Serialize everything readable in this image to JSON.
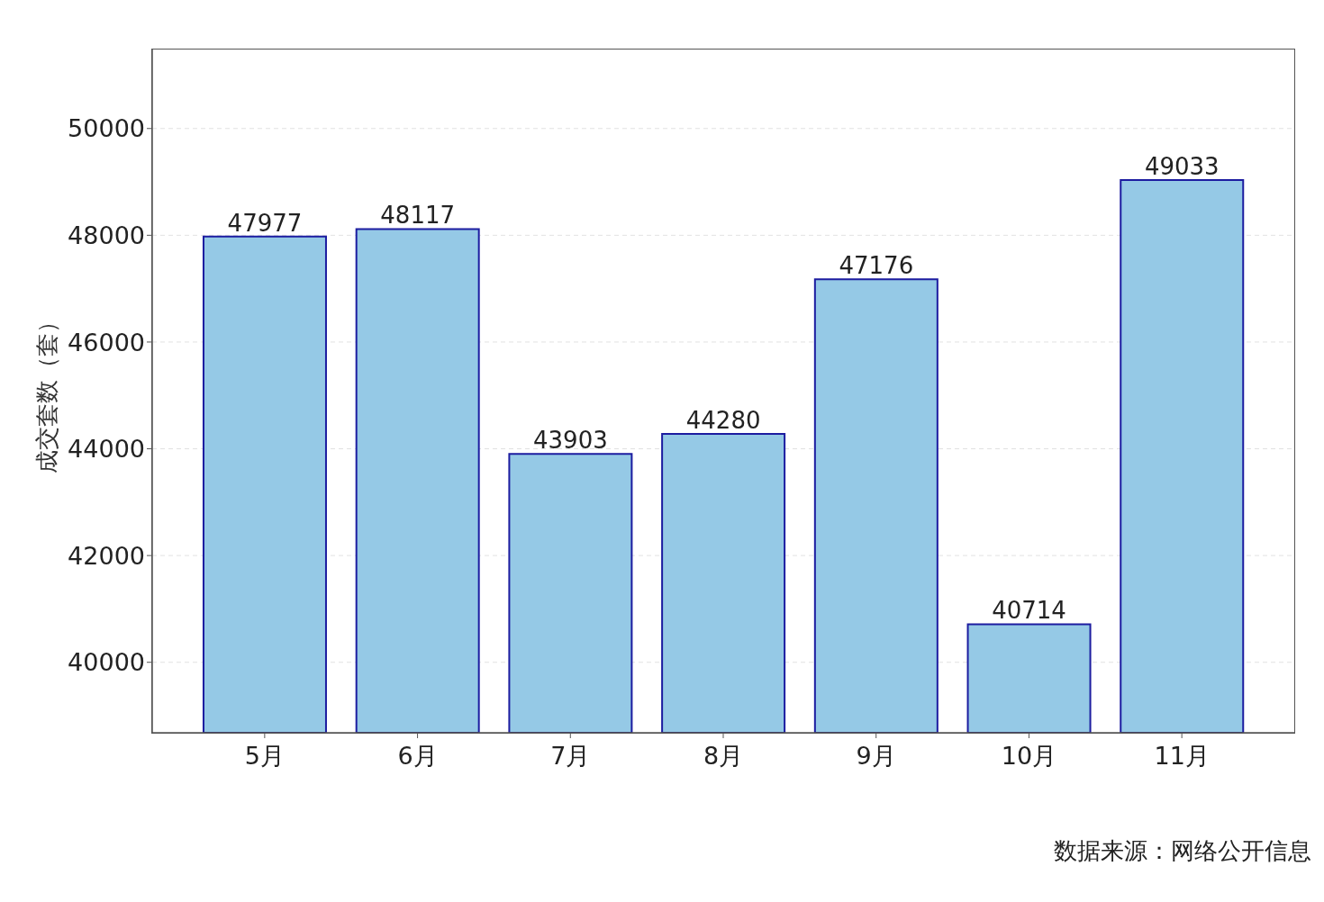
{
  "chart_data": {
    "type": "bar",
    "ylabel": "成交套数（套）",
    "categories": [
      "5月",
      "6月",
      "7月",
      "8月",
      "9月",
      "10月",
      "11月"
    ],
    "values": [
      47977,
      48117,
      43903,
      44280,
      47176,
      40714,
      49033
    ],
    "color": "#95c9e6",
    "ylim": [
      38680,
      51480
    ],
    "yticks": [
      40000,
      42000,
      44000,
      46000,
      48000,
      50000
    ],
    "grid": "y",
    "data_labels": true,
    "annotations": [
      "数据来源：网络公开信息"
    ]
  }
}
